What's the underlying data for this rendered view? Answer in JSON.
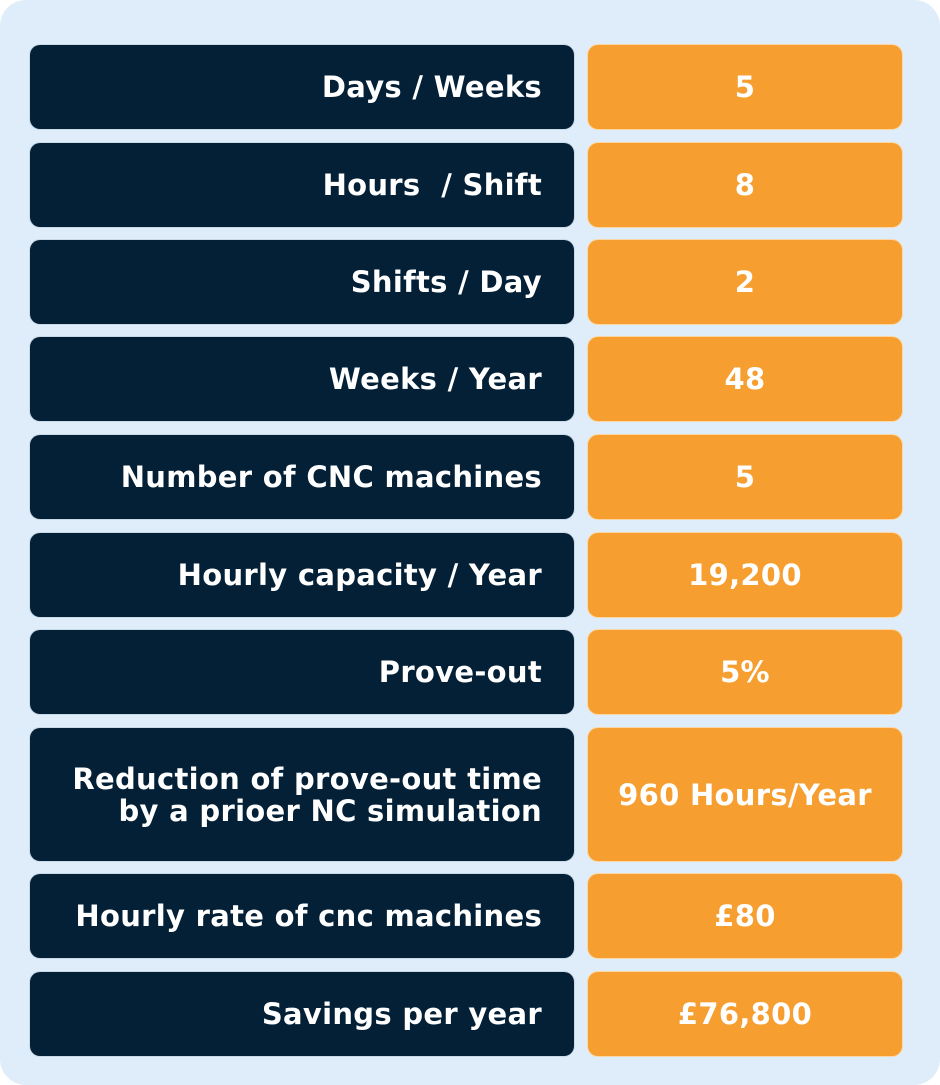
{
  "table": {
    "rows": [
      {
        "label": "Days / Weeks",
        "value": "5"
      },
      {
        "label": "Hours  / Shift",
        "value": "8"
      },
      {
        "label": "Shifts / Day",
        "value": "2"
      },
      {
        "label": "Weeks / Year",
        "value": "48"
      },
      {
        "label": "Number of CNC machines",
        "value": "5"
      },
      {
        "label": "Hourly capacity / Year",
        "value": "19,200"
      },
      {
        "label": "Prove-out",
        "value": "5%"
      },
      {
        "label": "Reduction of prove-out time by a prioer NC simulation",
        "value": "960 Hours/Year"
      },
      {
        "label": "Hourly rate of cnc machines",
        "value": "£80"
      },
      {
        "label": "Savings per year",
        "value": "£76,800"
      }
    ]
  },
  "colors": {
    "label_background": "#032036",
    "value_background": "#f69e2f",
    "panel_background": "#deedf9",
    "text": "#ffffff"
  }
}
